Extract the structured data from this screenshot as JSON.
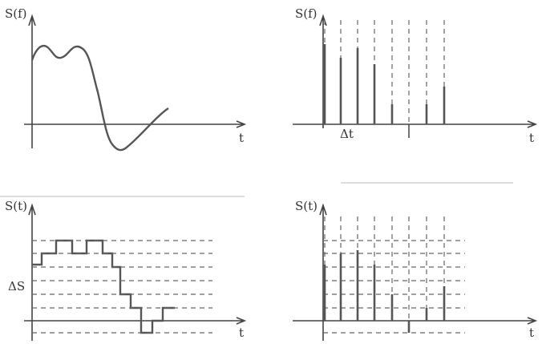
{
  "panels": [
    {
      "y_label": "S(f)",
      "x_label": "t"
    },
    {
      "y_label": "S(f)",
      "x_label": "t",
      "step_label": "Δt"
    },
    {
      "y_label": "S(t)",
      "x_label": "t",
      "step_label": "ΔS"
    },
    {
      "y_label": "S(t)",
      "x_label": "t"
    }
  ]
}
